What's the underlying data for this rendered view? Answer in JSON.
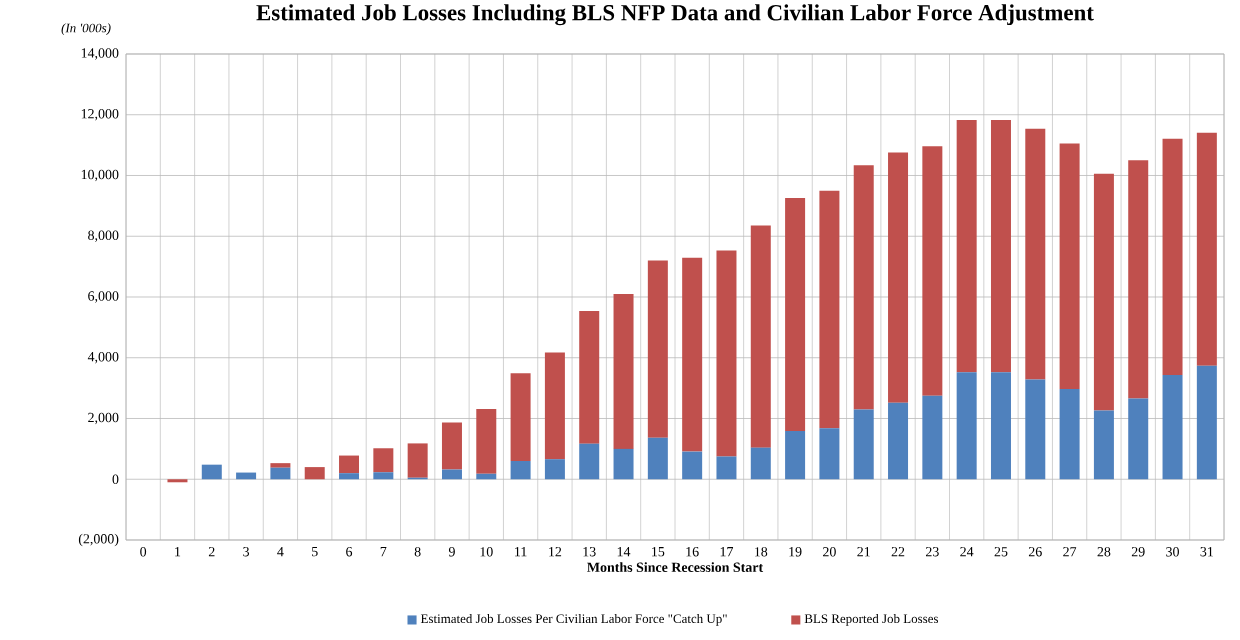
{
  "chart_data": {
    "type": "bar",
    "stacked": true,
    "title": "Estimated Job Losses Including  BLS NFP Data and Civilian  Labor Force Adjustment",
    "ylabel": "(In '000s)",
    "xlabel": "Months  Since Recession Start",
    "categories": [
      "0",
      "1",
      "2",
      "3",
      "4",
      "5",
      "6",
      "7",
      "8",
      "9",
      "10",
      "11",
      "12",
      "13",
      "14",
      "15",
      "16",
      "17",
      "18",
      "19",
      "20",
      "21",
      "22",
      "23",
      "24",
      "25",
      "26",
      "27",
      "28",
      "29",
      "30",
      "31"
    ],
    "series": [
      {
        "name": "Estimated Job Losses Per Civilian Labor Force \"Catch Up\"",
        "color": "#4f81bd",
        "values": [
          null,
          0,
          480,
          220,
          380,
          0,
          200,
          230,
          50,
          320,
          180,
          600,
          660,
          1170,
          1000,
          1370,
          910,
          750,
          1040,
          1590,
          1680,
          2300,
          2520,
          2750,
          3520,
          3520,
          3280,
          2970,
          2260,
          2660,
          3430,
          3740
        ]
      },
      {
        "name": "BLS Reported Job Losses",
        "color": "#c0504d",
        "values": [
          null,
          -100,
          0,
          null,
          150,
          400,
          580,
          790,
          1130,
          1550,
          2130,
          2890,
          3510,
          4370,
          5100,
          5830,
          6380,
          6780,
          7310,
          7670,
          7820,
          8040,
          8240,
          8210,
          8310,
          8310,
          8260,
          8080,
          7800,
          7840,
          7780,
          7670
        ]
      }
    ],
    "ylim": [
      -2000,
      14000
    ],
    "yticks": [
      {
        "value": -2000,
        "label": "(2,000)"
      },
      0,
      {
        "value": 2000,
        "label": "2,000"
      },
      {
        "value": 4000,
        "label": "4,000"
      },
      {
        "value": 6000,
        "label": "6,000"
      },
      {
        "value": 8000,
        "label": "8,000"
      },
      {
        "value": 10000,
        "label": "10,000"
      },
      {
        "value": 12000,
        "label": "12,000"
      },
      {
        "value": 14000,
        "label": "14,000"
      }
    ],
    "grid": true,
    "legend": "bottom"
  }
}
